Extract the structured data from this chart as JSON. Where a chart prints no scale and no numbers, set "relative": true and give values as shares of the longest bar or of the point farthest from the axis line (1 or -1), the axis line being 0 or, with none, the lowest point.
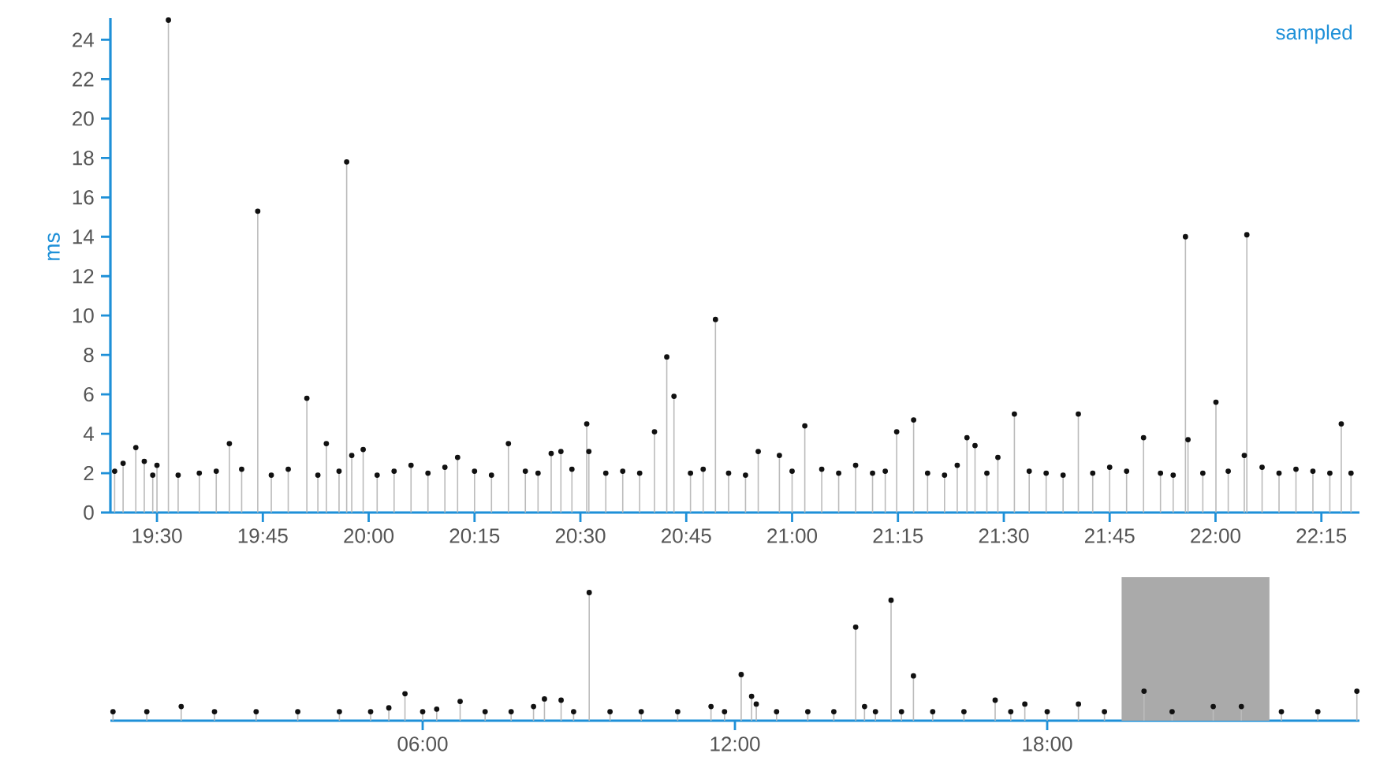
{
  "chart_data": [
    {
      "type": "lollipop",
      "ylabel": "ms",
      "annotations": [
        "sampled"
      ],
      "color": "#111111",
      "marker": "circle",
      "x": [
        19.4,
        19.42,
        19.45,
        19.47,
        19.49,
        19.5,
        19.527,
        19.55,
        19.6,
        19.64,
        19.671,
        19.7,
        19.738,
        19.77,
        19.81,
        19.854,
        19.88,
        19.9,
        19.93,
        19.948,
        19.96,
        19.987,
        20.02,
        20.06,
        20.1,
        20.14,
        20.18,
        20.21,
        20.25,
        20.29,
        20.33,
        20.37,
        20.4,
        20.431,
        20.454,
        20.48,
        20.515,
        20.52,
        20.56,
        20.6,
        20.64,
        20.675,
        20.704,
        20.721,
        20.76,
        20.79,
        20.819,
        20.85,
        20.89,
        20.92,
        20.97,
        21.0,
        21.03,
        21.07,
        21.11,
        21.15,
        21.19,
        21.22,
        21.247,
        21.287,
        21.32,
        21.36,
        21.39,
        21.413,
        21.432,
        21.46,
        21.486,
        21.525,
        21.56,
        21.6,
        21.64,
        21.676,
        21.71,
        21.75,
        21.79,
        21.83,
        21.87,
        21.9,
        21.929,
        21.935,
        21.97,
        22.001,
        22.03,
        22.068,
        22.074,
        22.11,
        22.15,
        22.19,
        22.23,
        22.27,
        22.297,
        22.32
      ],
      "values": [
        2.1,
        2.5,
        3.3,
        2.6,
        1.9,
        2.4,
        25,
        1.9,
        2.0,
        2.1,
        3.5,
        2.2,
        15.3,
        1.9,
        2.2,
        5.8,
        1.9,
        3.5,
        2.1,
        17.8,
        2.9,
        3.2,
        1.9,
        2.1,
        2.4,
        2.0,
        2.3,
        2.8,
        2.1,
        1.9,
        3.5,
        2.1,
        2.0,
        3.0,
        3.1,
        2.2,
        4.5,
        3.1,
        2.0,
        2.1,
        2.0,
        4.1,
        7.9,
        5.9,
        2.0,
        2.2,
        9.8,
        2.0,
        1.9,
        3.1,
        2.9,
        2.1,
        4.4,
        2.2,
        2.0,
        2.4,
        2.0,
        2.1,
        4.1,
        4.7,
        2.0,
        1.9,
        2.4,
        3.8,
        3.4,
        2.0,
        2.8,
        5.0,
        2.1,
        2.0,
        1.9,
        5.0,
        2.0,
        2.3,
        2.1,
        3.8,
        2.0,
        1.9,
        14.0,
        3.7,
        2.0,
        5.6,
        2.1,
        2.9,
        14.1,
        2.3,
        2.0,
        2.2,
        2.1,
        2.0,
        4.5,
        2.0
      ],
      "xlim": [
        19.39,
        22.34
      ],
      "ylim": [
        0,
        25.1
      ],
      "xticks": [
        {
          "value": 19.5,
          "label": "19:30"
        },
        {
          "value": 19.75,
          "label": "19:45"
        },
        {
          "value": 20.0,
          "label": "20:00"
        },
        {
          "value": 20.25,
          "label": "20:15"
        },
        {
          "value": 20.5,
          "label": "20:30"
        },
        {
          "value": 20.75,
          "label": "20:45"
        },
        {
          "value": 21.0,
          "label": "21:00"
        },
        {
          "value": 21.25,
          "label": "21:15"
        },
        {
          "value": 21.5,
          "label": "21:30"
        },
        {
          "value": 21.75,
          "label": "21:45"
        },
        {
          "value": 22.0,
          "label": "22:00"
        },
        {
          "value": 22.25,
          "label": "22:15"
        }
      ],
      "yticks": [
        0,
        2,
        4,
        6,
        8,
        10,
        12,
        14,
        16,
        18,
        20,
        22,
        24
      ]
    },
    {
      "type": "lollipop",
      "relative": true,
      "tick_labels": "x",
      "color": "#111111",
      "marker": "circle",
      "x": [
        0.05,
        0.7,
        1.36,
        2.0,
        2.8,
        3.6,
        4.4,
        5.0,
        5.35,
        5.66,
        6.0,
        6.27,
        6.72,
        7.2,
        7.7,
        8.13,
        8.34,
        8.66,
        8.9,
        9.2,
        9.6,
        10.2,
        10.9,
        11.54,
        11.8,
        12.12,
        12.32,
        12.41,
        12.8,
        13.4,
        13.9,
        14.32,
        14.49,
        14.7,
        15.0,
        15.2,
        15.43,
        15.8,
        16.4,
        17.0,
        17.3,
        17.57,
        18.0,
        18.6,
        19.1,
        19.86,
        20.4,
        21.19,
        21.73,
        22.5,
        23.2,
        23.95
      ],
      "values": [
        0.07,
        0.07,
        0.11,
        0.07,
        0.07,
        0.07,
        0.07,
        0.07,
        0.1,
        0.21,
        0.07,
        0.09,
        0.15,
        0.07,
        0.07,
        0.11,
        0.17,
        0.16,
        0.07,
        1.0,
        0.07,
        0.07,
        0.07,
        0.11,
        0.07,
        0.36,
        0.19,
        0.13,
        0.07,
        0.07,
        0.07,
        0.73,
        0.11,
        0.07,
        0.94,
        0.07,
        0.35,
        0.07,
        0.07,
        0.16,
        0.07,
        0.13,
        0.07,
        0.13,
        0.07,
        0.23,
        0.07,
        0.11,
        0.11,
        0.07,
        0.07,
        0.23
      ],
      "xlim": [
        0,
        24
      ],
      "xticks": [
        {
          "value": 6,
          "label": "06:00"
        },
        {
          "value": 12,
          "label": "12:00"
        },
        {
          "value": 18,
          "label": "18:00"
        }
      ],
      "bands": [
        {
          "axis": "x",
          "from": 19.43,
          "to": 22.27,
          "color": "#aaaaaa"
        }
      ]
    }
  ]
}
